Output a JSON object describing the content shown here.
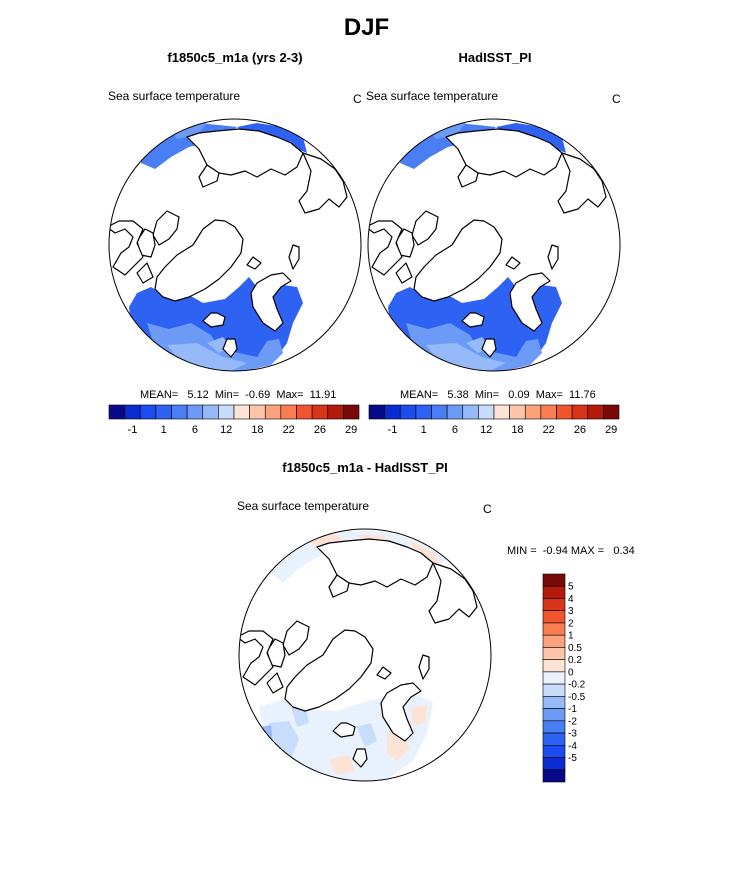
{
  "figure": {
    "title": "DJF"
  },
  "chart_data": [
    {
      "type": "heatmap",
      "projection": "north polar stereographic",
      "title": "f1850c5_m1a (yrs 2-3)",
      "variable": "Sea surface temperature",
      "units": "C",
      "stats_text": "MEAN=   5.12  Min=  -0.69  Max=  11.91",
      "mean": 5.12,
      "min": -0.69,
      "max": 11.91,
      "colorbar": {
        "orientation": "horizontal",
        "colors": [
          "#08088a",
          "#0a2bd0",
          "#1a4cf0",
          "#2e62f2",
          "#4a7ef5",
          "#6b9af7",
          "#95b9f9",
          "#c8dcfb",
          "#fde3d6",
          "#fcc5a9",
          "#fba27c",
          "#fa7d52",
          "#f0552e",
          "#d8341a",
          "#b31a0c",
          "#7a0a05"
        ],
        "tick_labels": [
          "-1",
          "1",
          "6",
          "12",
          "18",
          "22",
          "26",
          "29"
        ]
      }
    },
    {
      "type": "heatmap",
      "projection": "north polar stereographic",
      "title": "HadISST_PI",
      "variable": "Sea surface temperature",
      "units": "C",
      "stats_text": "MEAN=   5.38  Min=   0.09  Max=  11.76",
      "mean": 5.38,
      "min": 0.09,
      "max": 11.76,
      "colorbar": {
        "orientation": "horizontal",
        "colors": [
          "#08088a",
          "#0a2bd0",
          "#1a4cf0",
          "#2e62f2",
          "#4a7ef5",
          "#6b9af7",
          "#95b9f9",
          "#c8dcfb",
          "#fde3d6",
          "#fcc5a9",
          "#fba27c",
          "#fa7d52",
          "#f0552e",
          "#d8341a",
          "#b31a0c",
          "#7a0a05"
        ],
        "tick_labels": [
          "-1",
          "1",
          "6",
          "12",
          "18",
          "22",
          "26",
          "29"
        ]
      }
    },
    {
      "type": "heatmap",
      "projection": "north polar stereographic",
      "title": "f1850c5_m1a - HadISST_PI",
      "variable": "Sea surface temperature",
      "units": "C",
      "stats_text": "MIN =  -0.94 MAX =   0.34",
      "min": -0.94,
      "max": 0.34,
      "colorbar": {
        "orientation": "vertical",
        "colors": [
          "#7a0a05",
          "#b31a0c",
          "#d8341a",
          "#f0552e",
          "#fa7d52",
          "#fba27c",
          "#fcc5a9",
          "#fde3d6",
          "#e8f1fc",
          "#c8dcfb",
          "#95b9f9",
          "#6b9af7",
          "#4a7ef5",
          "#2e62f2",
          "#1a4cf0",
          "#0a2bd0",
          "#08088a"
        ],
        "tick_labels": [
          "5",
          "4",
          "3",
          "2",
          "1",
          "0.5",
          "0.2",
          "0",
          "-0.2",
          "-0.5",
          "-1",
          "-2",
          "-3",
          "-4",
          "-5"
        ]
      }
    }
  ]
}
